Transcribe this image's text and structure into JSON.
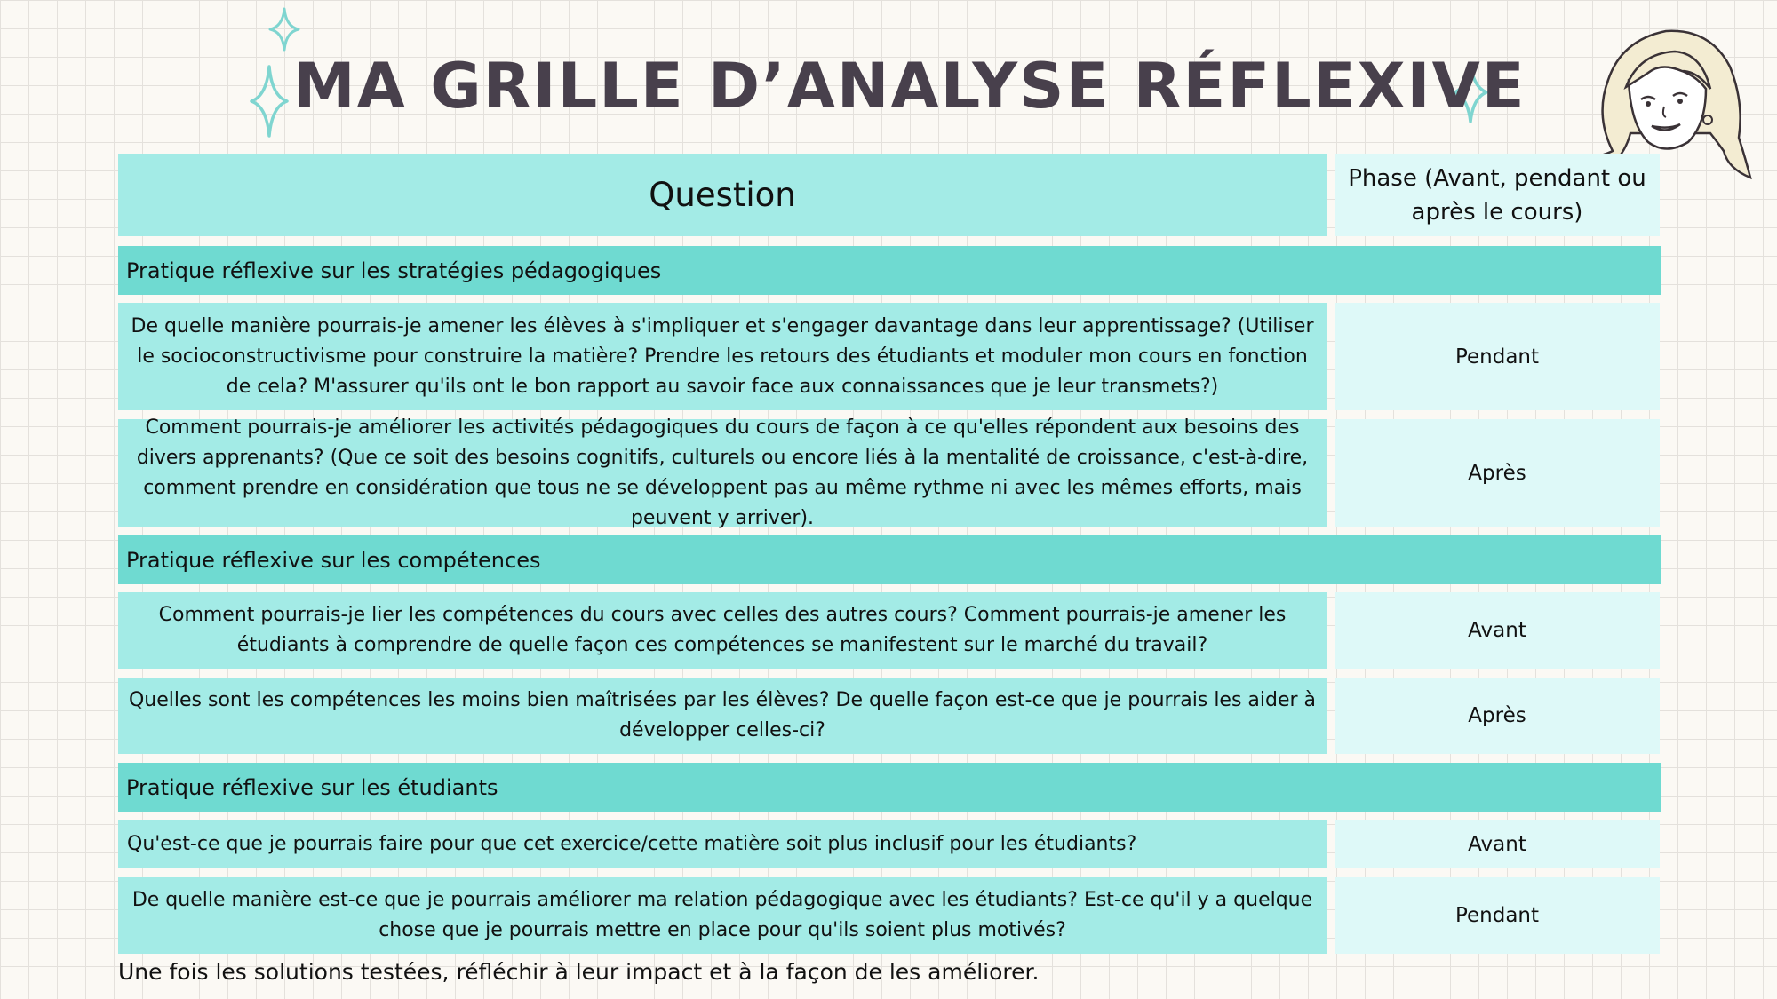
{
  "title": "MA GRILLE D’ANALYSE RÉFLEXIVE",
  "table": {
    "header": {
      "question": "Question",
      "phase": "Phase (Avant, pendant ou après le cours)"
    },
    "sections": [
      {
        "title": "Pratique réflexive sur les stratégies pédagogiques",
        "rows": [
          {
            "question": "De quelle manière pourrais-je amener les élèves à s'impliquer et s'engager davantage dans leur apprentissage? (Utiliser le socioconstructivisme pour construire la matière? Prendre les retours des étudiants et moduler mon cours en fonction de cela? M'assurer qu'ils ont le bon rapport au savoir face aux connaissances que je leur transmets?)",
            "phase": "Pendant"
          },
          {
            "question": "Comment pourrais-je améliorer les activités pédagogiques du cours de façon à ce qu'elles répondent aux besoins des divers apprenants? (Que ce soit des besoins cognitifs, culturels ou encore liés à la mentalité de croissance, c'est-à-dire, comment prendre en considération que tous ne se développent pas au même rythme ni avec les mêmes efforts, mais peuvent y arriver).",
            "phase": "Après"
          }
        ]
      },
      {
        "title": "Pratique réflexive sur les compétences",
        "rows": [
          {
            "question": "Comment pourrais-je lier les compétences du cours avec celles des autres cours? Comment pourrais-je amener les étudiants à comprendre de quelle façon ces compétences se manifestent sur le marché du travail?",
            "phase": "Avant"
          },
          {
            "question": "Quelles sont les compétences les moins bien maîtrisées par les élèves? De quelle façon est-ce que je pourrais les aider à développer celles-ci?",
            "phase": "Après"
          }
        ]
      },
      {
        "title": "Pratique réflexive sur les étudiants",
        "rows": [
          {
            "question": "Qu'est-ce que je pourrais faire pour que cet exercice/cette matière soit plus inclusif pour les étudiants?",
            "phase": "Avant"
          },
          {
            "question": "De quelle manière est-ce que je pourrais améliorer ma relation pédagogique avec les étudiants? Est-ce qu'il y a quelque chose que je pourrais mettre en place pour qu'ils soient plus motivés?",
            "phase": "Pendant"
          }
        ]
      }
    ]
  },
  "footer": "Une fois les solutions testées, réfléchir à leur impact et à la façon de les améliorer.",
  "decorations": {
    "sparkle_color": "#7fd5d0",
    "title_color": "#48404c",
    "icons": [
      "sparkle-icon",
      "sparkle-icon",
      "sparkle-icon",
      "avatar-illustration"
    ]
  }
}
